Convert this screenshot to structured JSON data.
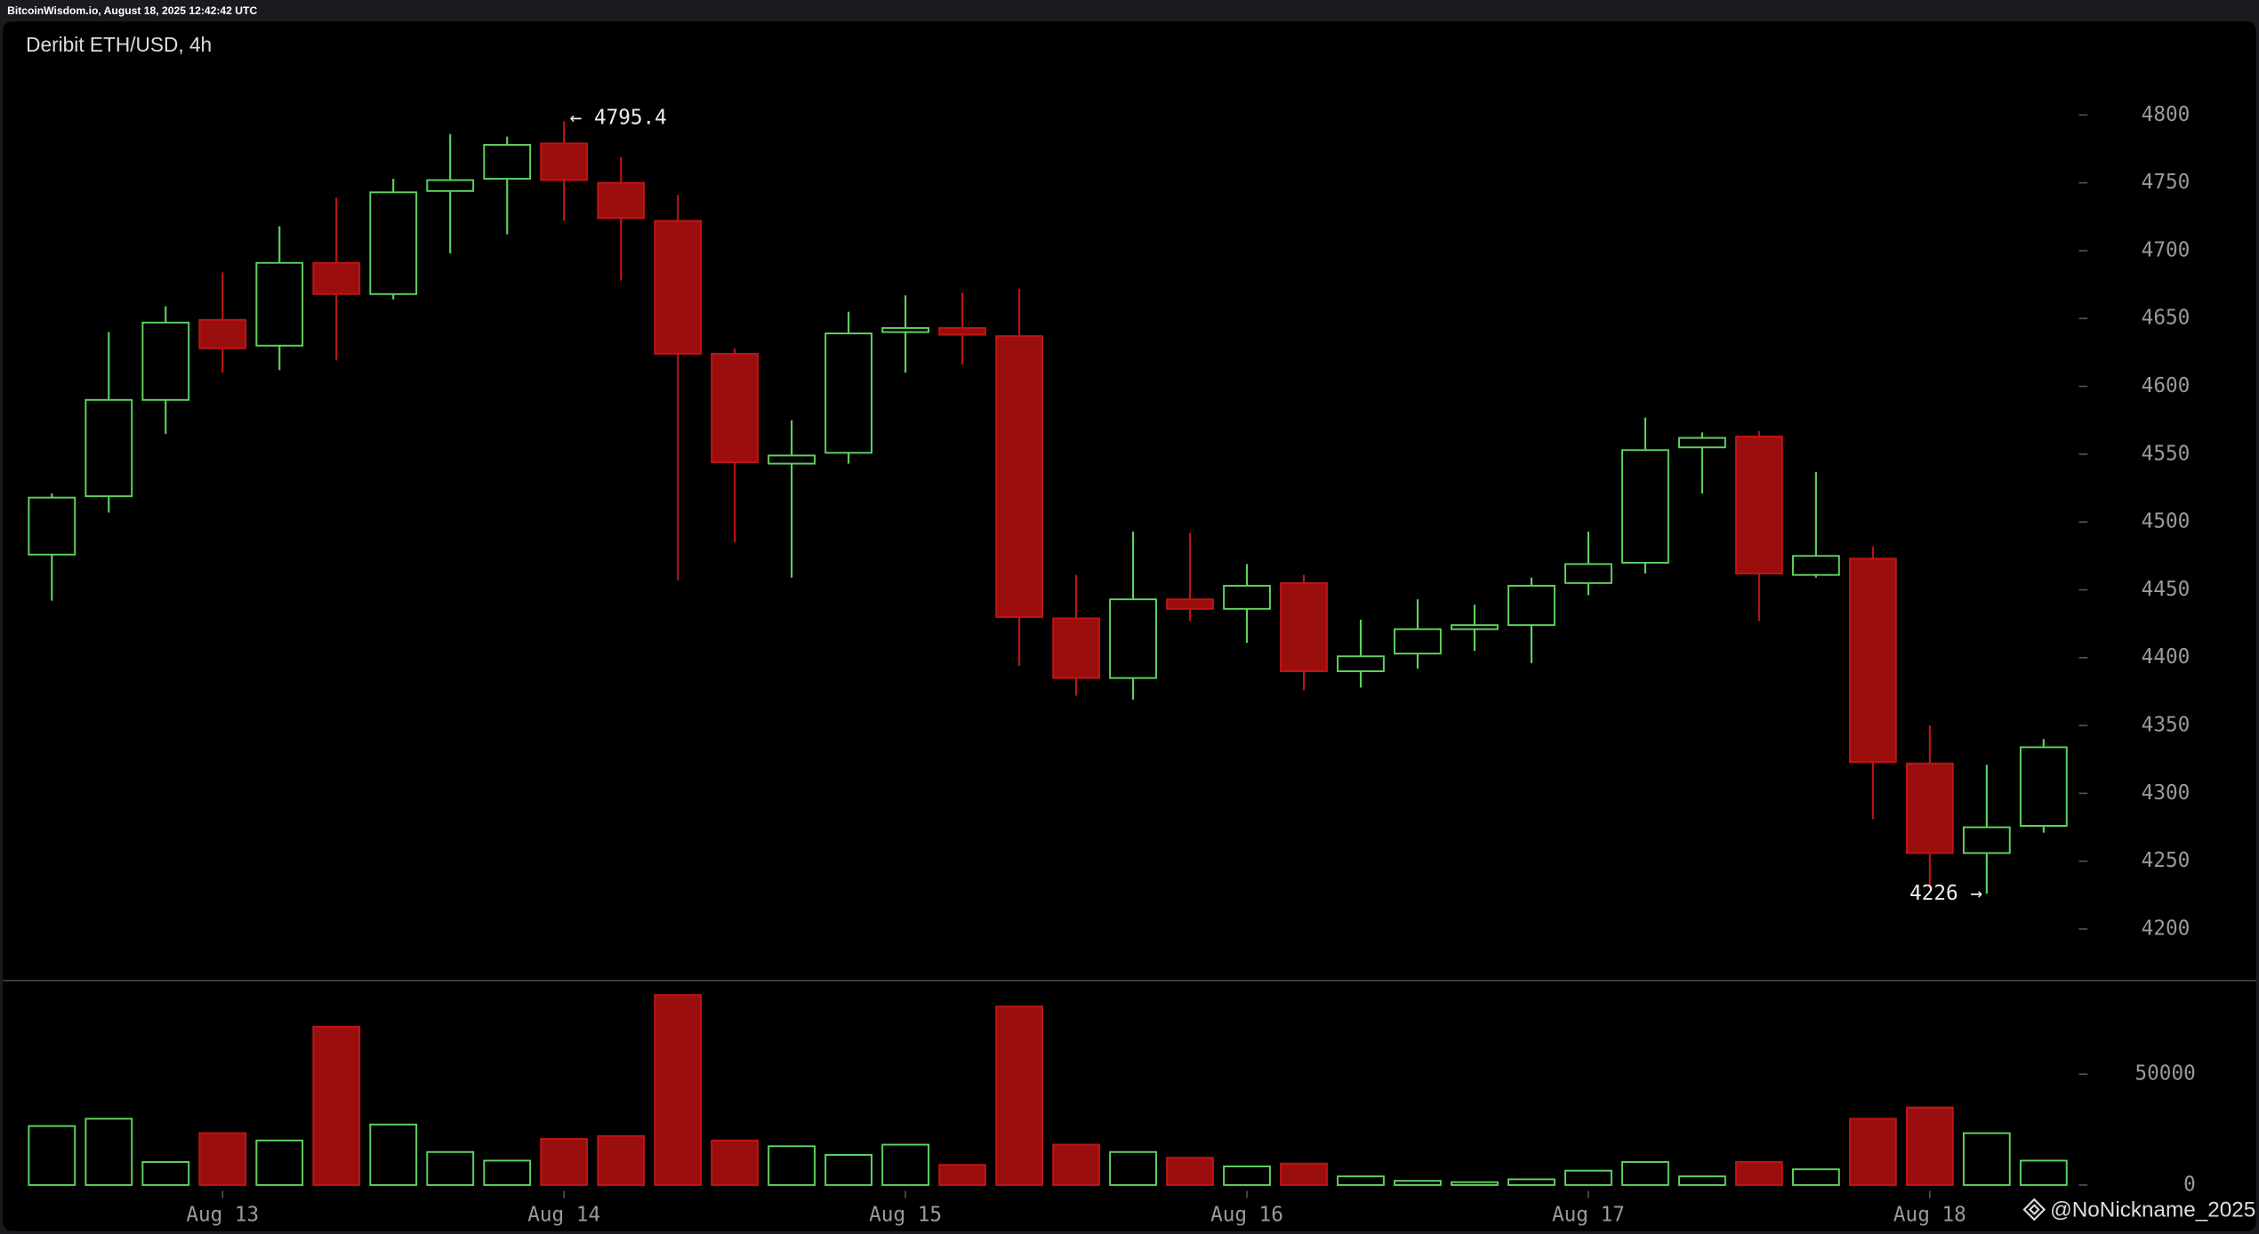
{
  "header": {
    "text": "BitcoinWisdom.io, August 18, 2025 12:42:42 UTC"
  },
  "watermark": {
    "text": "@NoNickname_2025"
  },
  "chart_data": [
    {
      "type": "candlestick",
      "title": "Deribit ETH/USD, 4h",
      "open": [
        4476,
        4519,
        4590,
        4649,
        4630,
        4691,
        4668,
        4744,
        4753,
        4779,
        4750,
        4722,
        4624,
        4543,
        4551,
        4640,
        4643,
        4637,
        4429,
        4385,
        4443,
        4436,
        4455,
        4390,
        4403,
        4421,
        4424,
        4455,
        4470,
        4555,
        4563,
        4461,
        4473,
        4322,
        4256,
        4276
      ],
      "high": [
        4521,
        4640,
        4659,
        4684,
        4718,
        4739,
        4753,
        4786,
        4784,
        4795.4,
        4769,
        4741,
        4628,
        4575,
        4655,
        4667,
        4669,
        4672,
        4461,
        4493,
        4492,
        4469,
        4461,
        4428,
        4443,
        4439,
        4459,
        4493,
        4577,
        4566,
        4567,
        4537,
        4482,
        4350,
        4321,
        4340
      ],
      "low": [
        4442,
        4507,
        4565,
        4610,
        4612,
        4619,
        4664,
        4698,
        4712,
        4722,
        4678,
        4457,
        4485,
        4459,
        4543,
        4610,
        4616,
        4394,
        4372,
        4369,
        4427,
        4411,
        4376,
        4378,
        4392,
        4405,
        4396,
        4446,
        4462,
        4521,
        4427,
        4459,
        4281,
        4230,
        4226,
        4271
      ],
      "close": [
        4518,
        4590,
        4647,
        4628,
        4691,
        4668,
        4743,
        4752,
        4778,
        4752,
        4724,
        4624,
        4544,
        4549,
        4639,
        4643,
        4638,
        4430,
        4385,
        4443,
        4436,
        4453,
        4390,
        4401,
        4421,
        4424,
        4453,
        4469,
        4553,
        4562,
        4462,
        4475,
        4323,
        4256,
        4275,
        4334
      ],
      "up_color": "#5fd35f",
      "down_color": "#9b0e0e",
      "ylim": [
        4162,
        4837
      ],
      "yticks": [
        4200,
        4250,
        4300,
        4350,
        4400,
        4450,
        4500,
        4550,
        4600,
        4650,
        4700,
        4750,
        4800
      ],
      "annotations": [
        "← 4795.4",
        "4226 →"
      ]
    },
    {
      "type": "bar",
      "categories": [
        null,
        null,
        null,
        "Aug 13",
        null,
        null,
        null,
        null,
        null,
        "Aug 14",
        null,
        null,
        null,
        null,
        null,
        "Aug 15",
        null,
        null,
        null,
        null,
        null,
        "Aug 16",
        null,
        null,
        null,
        null,
        null,
        "Aug 17",
        null,
        null,
        null,
        null,
        null,
        "Aug 18",
        null,
        null
      ],
      "values": [
        26600,
        29900,
        10400,
        23400,
        20100,
        71400,
        27300,
        14900,
        11000,
        20800,
        22100,
        85700,
        20100,
        17500,
        13600,
        18200,
        9100,
        80500,
        18200,
        14900,
        12300,
        8400,
        9700,
        3900,
        1900,
        1300,
        2600,
        6500,
        10400,
        3900,
        10400,
        7100,
        29900,
        35000,
        23400,
        11000
      ],
      "ylim": [
        0,
        92200
      ],
      "yticks": [
        0,
        50000
      ]
    }
  ]
}
